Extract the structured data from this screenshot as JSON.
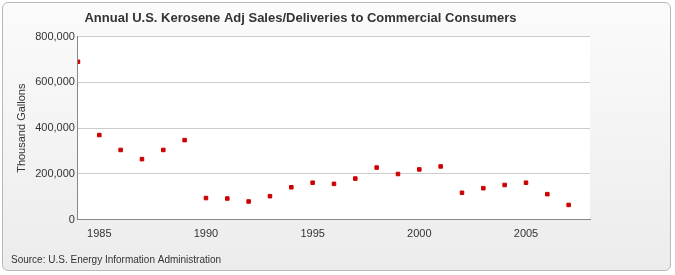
{
  "chart_data": {
    "type": "scatter",
    "title": "Annual U.S. Kerosene Adj Sales/Deliveries to Commercial Consumers",
    "y_label": "Thousand Gallons",
    "source": "Source: U.S. Energy Information Administration",
    "x": [
      1984,
      1985,
      1986,
      1987,
      1988,
      1989,
      1990,
      1991,
      1992,
      1993,
      1994,
      1995,
      1996,
      1997,
      1998,
      1999,
      2000,
      2001,
      2002,
      2003,
      2004,
      2005,
      2006,
      2007
    ],
    "values": [
      690000,
      370000,
      305000,
      265000,
      305000,
      348000,
      95000,
      93000,
      80000,
      103000,
      142000,
      162000,
      157000,
      180000,
      228000,
      200000,
      220000,
      233000,
      118000,
      138000,
      152000,
      162000,
      112000,
      65000
    ],
    "color": "#cc0000",
    "marker": "square",
    "xlim": [
      1984,
      2008
    ],
    "xticks": [
      1985,
      1990,
      1995,
      2000,
      2005
    ],
    "ylim": [
      0,
      800000
    ],
    "yticks": [
      {
        "value": 0,
        "label": "0"
      },
      {
        "value": 200000,
        "label": "200,000"
      },
      {
        "value": 400000,
        "label": "400,000"
      },
      {
        "value": 600000,
        "label": "600,000"
      },
      {
        "value": 800000,
        "label": "800,000"
      }
    ],
    "grid": true
  }
}
